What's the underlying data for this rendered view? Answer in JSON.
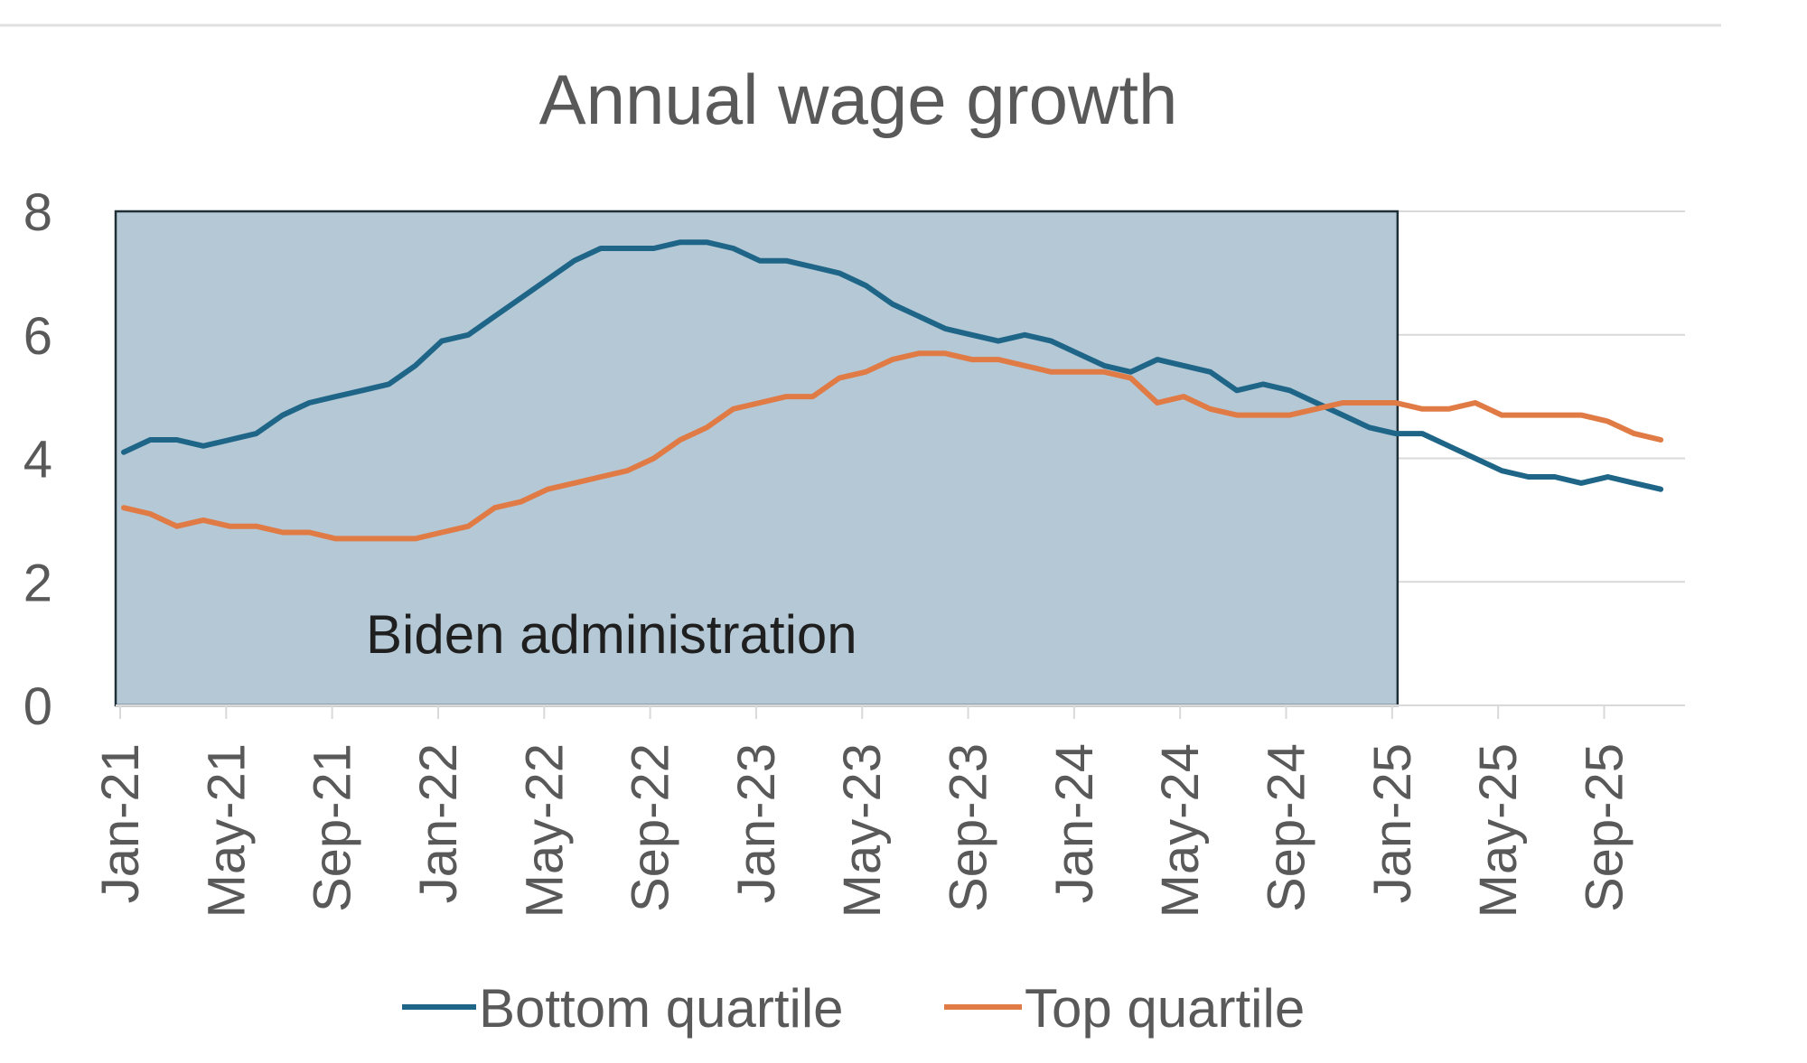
{
  "chart_data": {
    "type": "line",
    "title": "Annual wage growth",
    "xlabel": "",
    "ylabel": "",
    "ylim": [
      0,
      8
    ],
    "yticks": [
      "0",
      "2",
      "4",
      "6",
      "8"
    ],
    "grid": true,
    "legend_position": "bottom",
    "x_tick_labels": [
      "Jan-21",
      "May-21",
      "Sep-21",
      "Jan-22",
      "May-22",
      "Sep-22",
      "Jan-23",
      "May-23",
      "Sep-23",
      "Jan-24",
      "May-24",
      "Sep-24",
      "Jan-25",
      "May-25",
      "Sep-25"
    ],
    "x": [
      "Jan-21",
      "Feb-21",
      "Mar-21",
      "Apr-21",
      "May-21",
      "Jun-21",
      "Jul-21",
      "Aug-21",
      "Sep-21",
      "Oct-21",
      "Nov-21",
      "Dec-21",
      "Jan-22",
      "Feb-22",
      "Mar-22",
      "Apr-22",
      "May-22",
      "Jun-22",
      "Jul-22",
      "Aug-22",
      "Sep-22",
      "Oct-22",
      "Nov-22",
      "Dec-22",
      "Jan-23",
      "Feb-23",
      "Mar-23",
      "Apr-23",
      "May-23",
      "Jun-23",
      "Jul-23",
      "Aug-23",
      "Sep-23",
      "Oct-23",
      "Nov-23",
      "Dec-23",
      "Jan-24",
      "Feb-24",
      "Mar-24",
      "Apr-24",
      "May-24",
      "Jun-24",
      "Jul-24",
      "Aug-24",
      "Sep-24",
      "Oct-24",
      "Nov-24",
      "Dec-24",
      "Jan-25",
      "Feb-25",
      "Mar-25",
      "Apr-25",
      "May-25",
      "Jun-25",
      "Jul-25",
      "Aug-25",
      "Sep-25",
      "Oct-25",
      "Nov-25"
    ],
    "series": [
      {
        "name": "Bottom quartile",
        "color": "#1f6587",
        "values": [
          4.1,
          4.3,
          4.3,
          4.2,
          4.3,
          4.4,
          4.7,
          4.9,
          5.0,
          5.1,
          5.2,
          5.5,
          5.9,
          6.0,
          6.3,
          6.6,
          6.9,
          7.2,
          7.4,
          7.4,
          7.4,
          7.5,
          7.5,
          7.4,
          7.2,
          7.2,
          7.1,
          7.0,
          6.8,
          6.5,
          6.3,
          6.1,
          6.0,
          5.9,
          6.0,
          5.9,
          5.7,
          5.5,
          5.4,
          5.6,
          5.5,
          5.4,
          5.1,
          5.2,
          5.1,
          4.9,
          4.7,
          4.5,
          4.4,
          4.4,
          4.2,
          4.0,
          3.8,
          3.7,
          3.7,
          3.6,
          3.7,
          3.6,
          3.5
        ]
      },
      {
        "name": "Top quartile",
        "color": "#e07b45",
        "values": [
          3.2,
          3.1,
          2.9,
          3.0,
          2.9,
          2.9,
          2.8,
          2.8,
          2.7,
          2.7,
          2.7,
          2.7,
          2.8,
          2.9,
          3.2,
          3.3,
          3.5,
          3.6,
          3.7,
          3.8,
          4.0,
          4.3,
          4.5,
          4.8,
          4.9,
          5.0,
          5.0,
          5.3,
          5.4,
          5.6,
          5.7,
          5.7,
          5.6,
          5.6,
          5.5,
          5.4,
          5.4,
          5.4,
          5.3,
          4.9,
          5.0,
          4.8,
          4.7,
          4.7,
          4.7,
          4.8,
          4.9,
          4.9,
          4.9,
          4.8,
          4.8,
          4.9,
          4.7,
          4.7,
          4.7,
          4.7,
          4.6,
          4.4,
          4.3
        ]
      }
    ],
    "shaded_region": {
      "label": "Biden administration",
      "x_start": "Jan-21",
      "x_end": "Jan-25",
      "fill": "#b4c8d6",
      "border": "#1f2f38"
    },
    "legend": [
      {
        "label": "Bottom quartile",
        "color": "#1f6587"
      },
      {
        "label": "Top quartile",
        "color": "#e07b45"
      }
    ]
  }
}
